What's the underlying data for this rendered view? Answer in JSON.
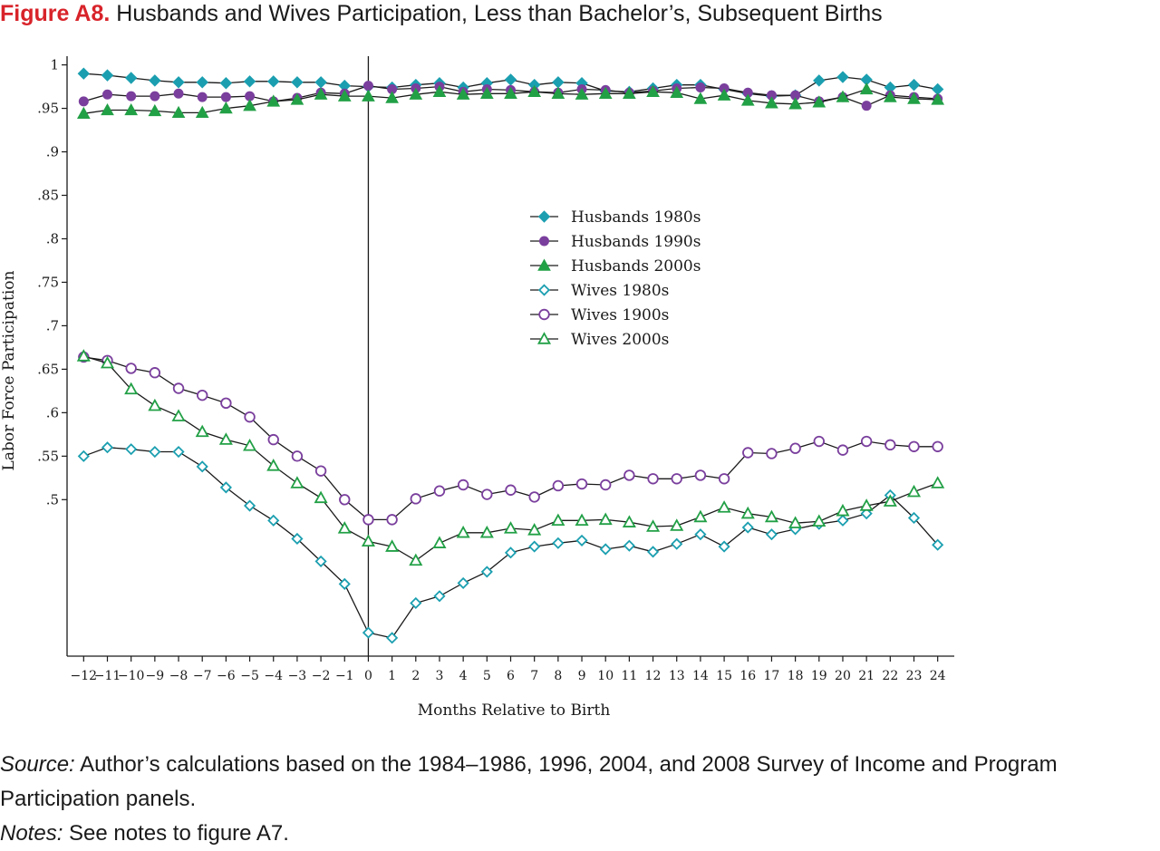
{
  "figure": {
    "label": "Figure A8.",
    "title": "Husbands and Wives Participation, Less than Bachelor’s, Subsequent Births"
  },
  "source": {
    "label": "Source:",
    "text": "Author’s calculations based on the 1984–1986, 1996, 2004, and 2008 Survey of Income and Program Participation panels."
  },
  "notes": {
    "label": "Notes:",
    "text": "See notes to figure A7."
  },
  "colors": {
    "teal": "#1b9fb0",
    "purple": "#7a3f9d",
    "green": "#22a046",
    "line": "#1a1a1a"
  },
  "chart_data": {
    "type": "line",
    "xlabel": "Months Relative to Birth",
    "ylabel": "Labor Force Participation",
    "x": [
      -12,
      -11,
      -10,
      -9,
      -8,
      -7,
      -6,
      -5,
      -4,
      -3,
      -2,
      -1,
      0,
      1,
      2,
      3,
      4,
      5,
      6,
      7,
      8,
      9,
      10,
      11,
      12,
      13,
      14,
      15,
      16,
      17,
      18,
      19,
      20,
      21,
      22,
      23,
      24
    ],
    "x_tick_labels": [
      "−12",
      "−11",
      "−10",
      "−9",
      "−8",
      "−7",
      "−6",
      "−5",
      "−4",
      "−3",
      "−2",
      "−1",
      "0",
      "1",
      "2",
      "3",
      "4",
      "5",
      "6",
      "7",
      "8",
      "9",
      "10",
      "11",
      "12",
      "13",
      "14",
      "15",
      "16",
      "17",
      "18",
      "19",
      "20",
      "21",
      "22",
      "23",
      "24"
    ],
    "y_ticks": [
      0.5,
      0.55,
      0.6,
      0.65,
      0.7,
      0.75,
      0.8,
      0.85,
      0.9,
      0.95,
      1.0
    ],
    "y_tick_labels": [
      ".5",
      ".55",
      ".6",
      ".65",
      ".7",
      ".75",
      ".8",
      ".85",
      ".9",
      ".95",
      "1"
    ],
    "ylim": [
      0.32,
      1.01
    ],
    "xlim": [
      -12.7,
      24.7
    ],
    "vline_x": 0,
    "grid": false,
    "legend_position": "center-right",
    "series": [
      {
        "name": "Husbands 1980s",
        "marker": "diamond",
        "filled": true,
        "color": "#1b9fb0",
        "values": [
          0.99,
          0.988,
          0.985,
          0.982,
          0.98,
          0.98,
          0.979,
          0.981,
          0.981,
          0.98,
          0.98,
          0.976,
          0.975,
          0.974,
          0.977,
          0.979,
          0.974,
          0.979,
          0.983,
          0.977,
          0.98,
          0.979,
          0.97,
          0.969,
          0.973,
          0.977,
          0.977,
          0.972,
          0.967,
          0.964,
          0.965,
          0.982,
          0.986,
          0.983,
          0.974,
          0.977,
          0.972
        ]
      },
      {
        "name": "Husbands 1990s",
        "marker": "circle",
        "filled": true,
        "color": "#7a3f9d",
        "values": [
          0.958,
          0.966,
          0.964,
          0.964,
          0.967,
          0.963,
          0.963,
          0.964,
          0.958,
          0.962,
          0.968,
          0.967,
          0.976,
          0.972,
          0.973,
          0.975,
          0.969,
          0.972,
          0.971,
          0.969,
          0.968,
          0.972,
          0.971,
          0.968,
          0.97,
          0.973,
          0.974,
          0.973,
          0.968,
          0.965,
          0.965,
          0.958,
          0.963,
          0.953,
          0.965,
          0.963,
          0.961
        ]
      },
      {
        "name": "Husbands 2000s",
        "marker": "triangle",
        "filled": true,
        "color": "#22a046",
        "values": [
          0.944,
          0.948,
          0.948,
          0.947,
          0.945,
          0.945,
          0.95,
          0.953,
          0.958,
          0.96,
          0.966,
          0.964,
          0.964,
          0.962,
          0.966,
          0.969,
          0.966,
          0.967,
          0.967,
          0.969,
          0.967,
          0.966,
          0.967,
          0.967,
          0.969,
          0.968,
          0.961,
          0.965,
          0.959,
          0.956,
          0.955,
          0.957,
          0.963,
          0.972,
          0.963,
          0.961,
          0.96
        ]
      },
      {
        "name": "Wives 1980s",
        "marker": "diamond",
        "filled": false,
        "color": "#1b9fb0",
        "values": [
          0.55,
          0.56,
          0.558,
          0.555,
          0.555,
          0.538,
          0.514,
          0.493,
          0.476,
          0.455,
          0.429,
          0.403,
          0.347,
          0.341,
          0.381,
          0.389,
          0.404,
          0.417,
          0.439,
          0.446,
          0.45,
          0.453,
          0.443,
          0.447,
          0.44,
          0.449,
          0.46,
          0.446,
          0.468,
          0.46,
          0.466,
          0.472,
          0.476,
          0.484,
          0.505,
          0.479,
          0.448
        ]
      },
      {
        "name": "Wives 1900s",
        "marker": "circle",
        "filled": false,
        "color": "#7a3f9d",
        "values": [
          0.664,
          0.66,
          0.651,
          0.646,
          0.628,
          0.62,
          0.611,
          0.595,
          0.569,
          0.55,
          0.533,
          0.5,
          0.477,
          0.477,
          0.501,
          0.51,
          0.517,
          0.506,
          0.511,
          0.503,
          0.516,
          0.518,
          0.517,
          0.528,
          0.524,
          0.524,
          0.528,
          0.524,
          0.554,
          0.553,
          0.559,
          0.567,
          0.557,
          0.567,
          0.563,
          0.561,
          0.561
        ]
      },
      {
        "name": "Wives 2000s",
        "marker": "triangle",
        "filled": false,
        "color": "#22a046",
        "values": [
          0.665,
          0.657,
          0.627,
          0.608,
          0.596,
          0.578,
          0.569,
          0.562,
          0.539,
          0.519,
          0.502,
          0.467,
          0.452,
          0.446,
          0.43,
          0.45,
          0.462,
          0.462,
          0.467,
          0.465,
          0.476,
          0.476,
          0.477,
          0.474,
          0.469,
          0.47,
          0.48,
          0.491,
          0.484,
          0.48,
          0.473,
          0.475,
          0.487,
          0.493,
          0.498,
          0.509,
          0.519
        ]
      }
    ]
  }
}
